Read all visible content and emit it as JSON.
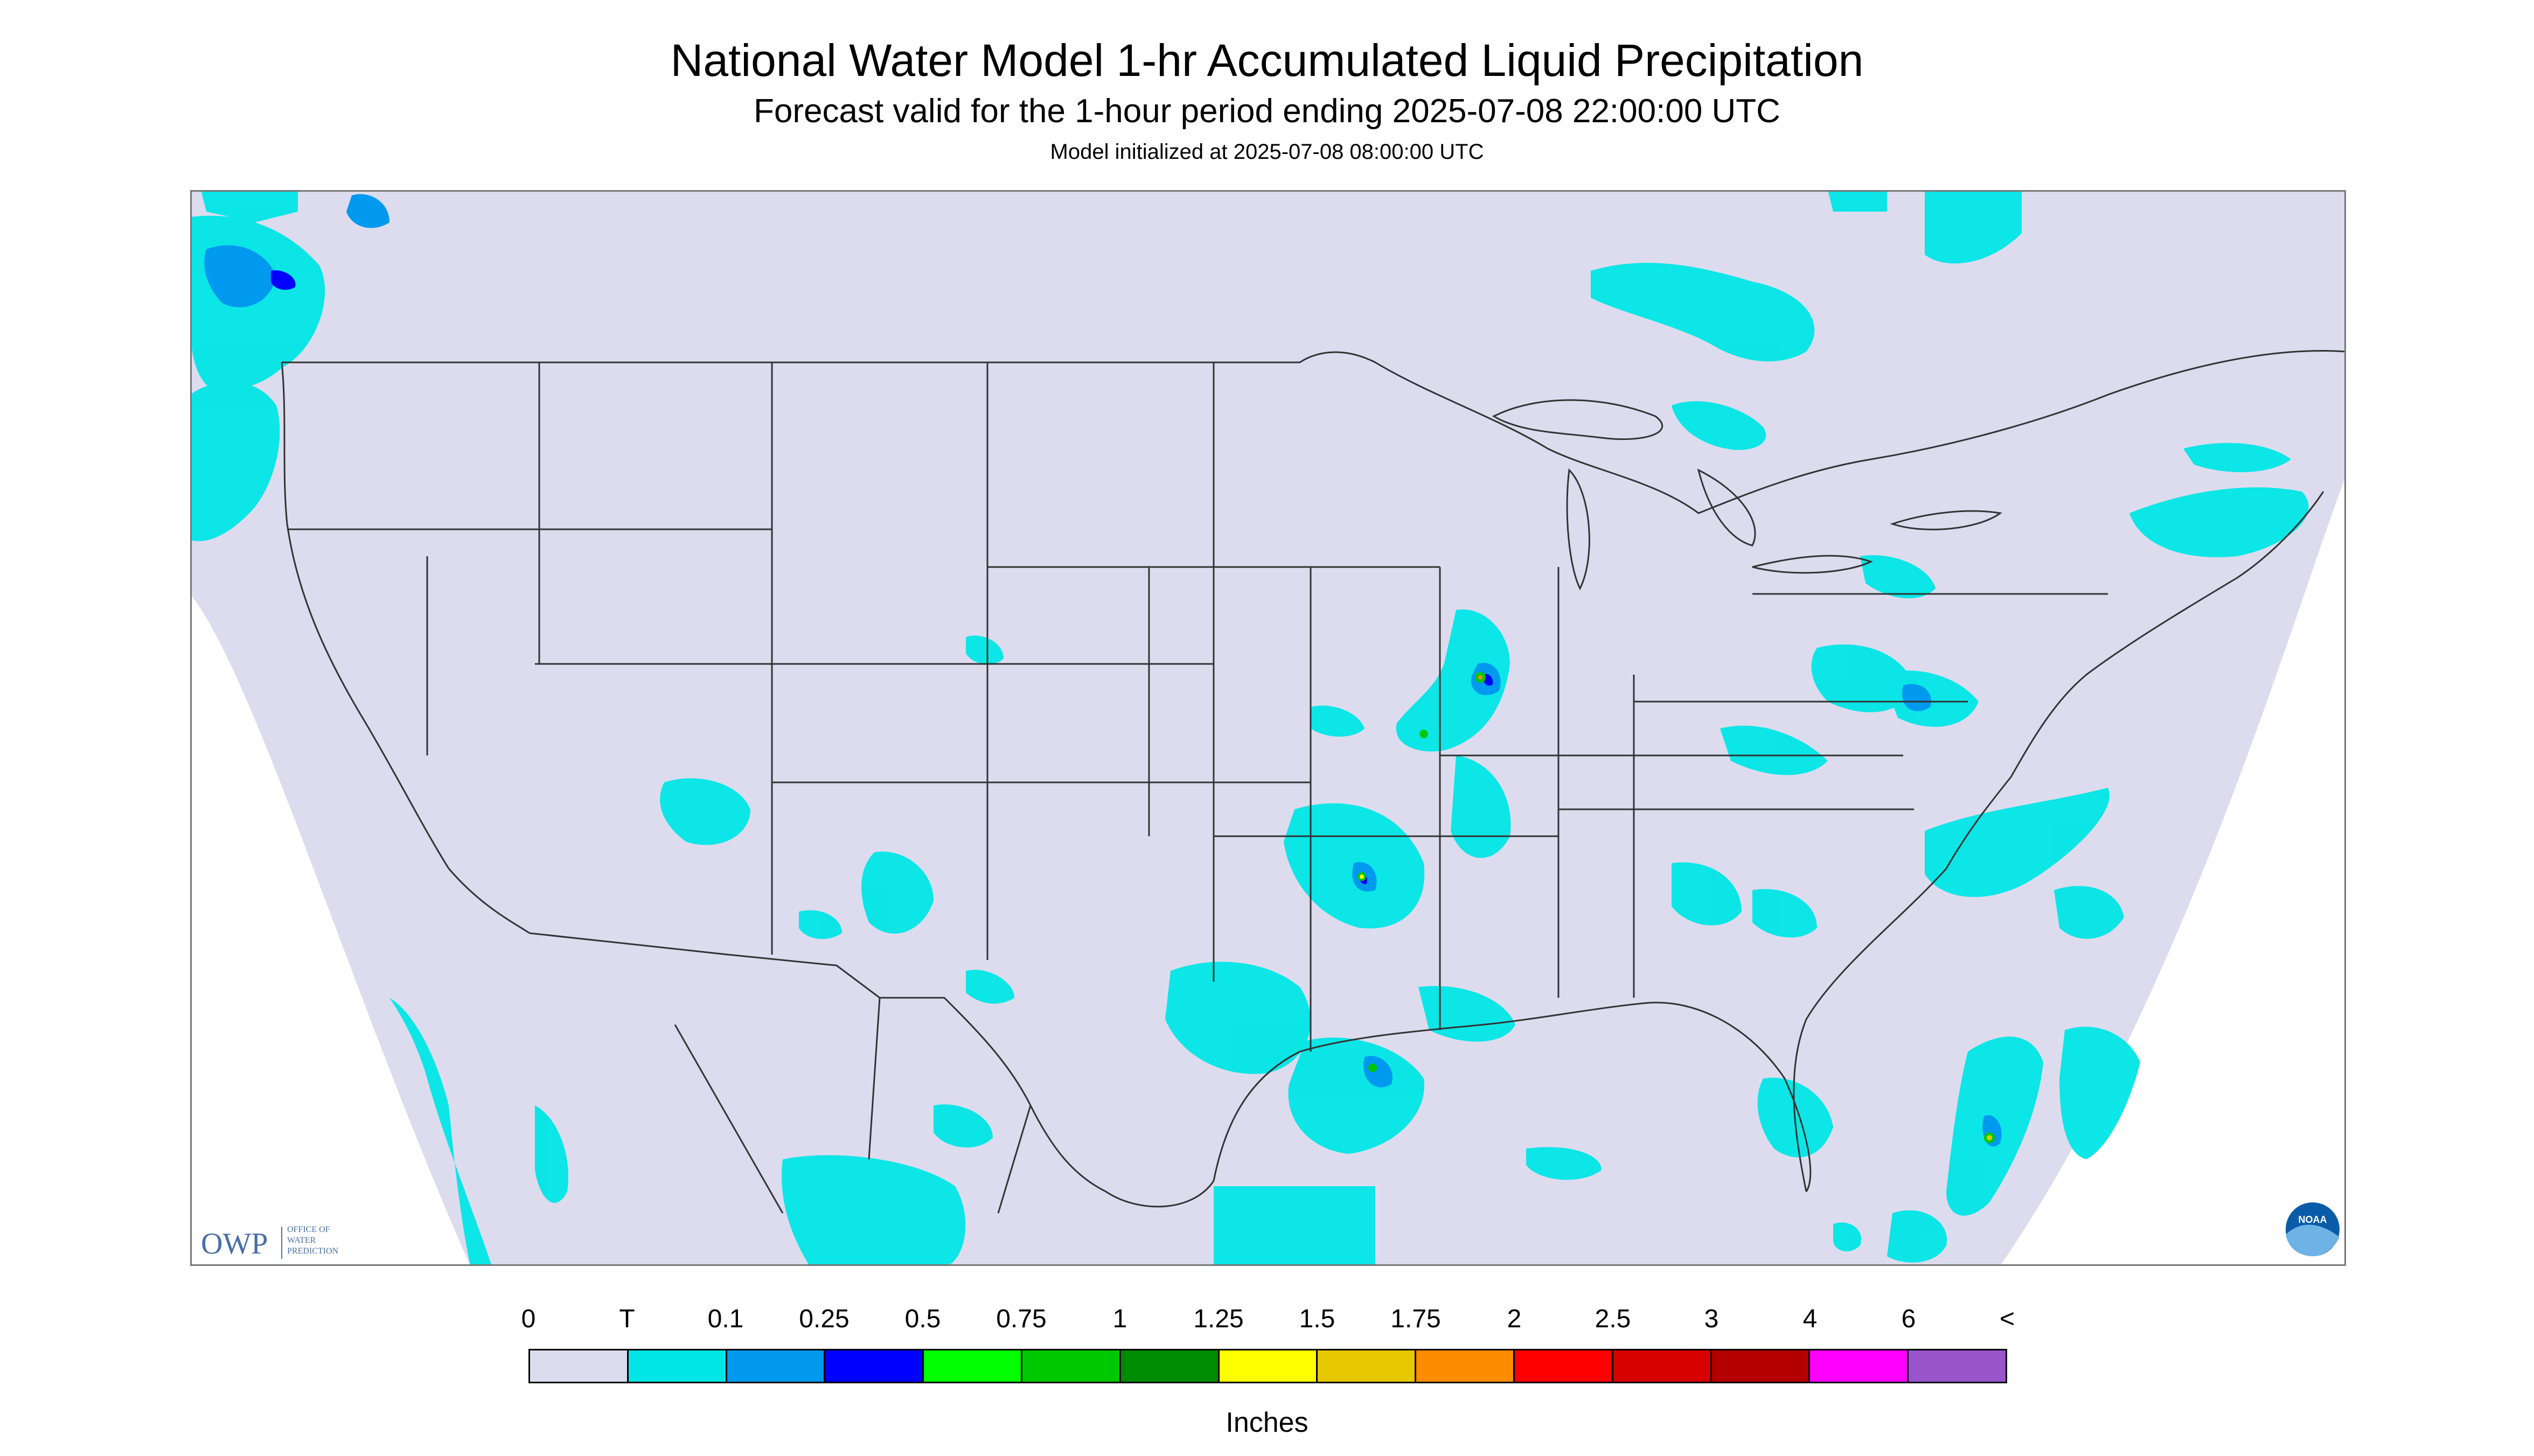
{
  "header": {
    "title": "National Water Model 1-hr Accumulated Liquid Precipitation",
    "subtitle": "Forecast valid for the 1-hour period ending 2025-07-08 22:00:00 UTC",
    "init": "Model initialized at 2025-07-08 08:00:00 UTC"
  },
  "map": {
    "background_color": "#dcdcee",
    "land_line_color": "#333333",
    "owp_logo": {
      "letters": "OWP",
      "lines": [
        "OFFICE OF",
        "WATER",
        "PREDICTION"
      ]
    },
    "noaa_logo": {
      "text": "NOAA"
    }
  },
  "legend": {
    "labels": [
      "0",
      "T",
      "0.1",
      "0.25",
      "0.5",
      "0.75",
      "1",
      "1.25",
      "1.5",
      "1.75",
      "2",
      "2.5",
      "3",
      "4",
      "6",
      "<"
    ],
    "colors": [
      "#dcdcee",
      "#00e6e6",
      "#0099f0",
      "#0000ff",
      "#00ff00",
      "#00c800",
      "#008c00",
      "#ffff00",
      "#e6c800",
      "#ff8c00",
      "#ff0000",
      "#d60000",
      "#b40000",
      "#ff00ff",
      "#9955cc"
    ],
    "units": "Inches"
  }
}
